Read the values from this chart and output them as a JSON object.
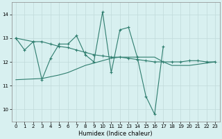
{
  "line1_x": [
    0,
    1,
    2,
    3,
    4,
    5,
    6,
    7,
    8,
    9,
    10,
    11,
    12,
    13,
    14,
    15,
    16,
    17
  ],
  "line1_y": [
    13.0,
    12.5,
    12.85,
    11.25,
    12.15,
    12.75,
    12.75,
    13.1,
    12.3,
    12.0,
    14.1,
    11.55,
    13.35,
    13.45,
    12.2,
    10.55,
    9.8,
    12.65
  ],
  "line2_x": [
    0,
    2,
    3,
    4,
    5,
    6,
    7,
    8,
    9,
    10,
    11,
    12,
    13,
    14,
    15,
    16,
    17,
    18,
    19,
    20,
    21,
    22,
    23
  ],
  "line2_y": [
    13.0,
    12.85,
    12.85,
    12.75,
    12.65,
    12.6,
    12.5,
    12.4,
    12.3,
    12.25,
    12.2,
    12.2,
    12.15,
    12.1,
    12.05,
    12.0,
    12.0,
    12.0,
    12.0,
    12.05,
    12.05,
    12.0,
    12.0
  ],
  "line3_x": [
    0,
    3,
    5,
    6,
    7,
    8,
    9,
    10,
    11,
    12,
    13,
    14,
    15,
    16,
    17,
    18,
    19,
    20,
    21,
    22,
    23
  ],
  "line3_y": [
    11.25,
    11.3,
    11.45,
    11.55,
    11.7,
    11.85,
    11.95,
    12.05,
    12.15,
    12.2,
    12.2,
    12.2,
    12.2,
    12.2,
    12.0,
    11.85,
    11.85,
    11.85,
    11.9,
    11.95,
    12.0
  ],
  "xlabel": "Humidex (Indice chaleur)",
  "xlim": [
    -0.5,
    23.5
  ],
  "ylim": [
    9.5,
    14.5
  ],
  "yticks": [
    10,
    11,
    12,
    13,
    14
  ],
  "xticks": [
    0,
    1,
    2,
    3,
    4,
    5,
    6,
    7,
    8,
    9,
    10,
    11,
    12,
    13,
    14,
    15,
    16,
    17,
    18,
    19,
    20,
    21,
    22,
    23
  ],
  "line_color": "#2e7d6e",
  "bg_color": "#d8f0f0",
  "grid_color": "#c0dada",
  "grid_minor_color": "#e0ecec"
}
